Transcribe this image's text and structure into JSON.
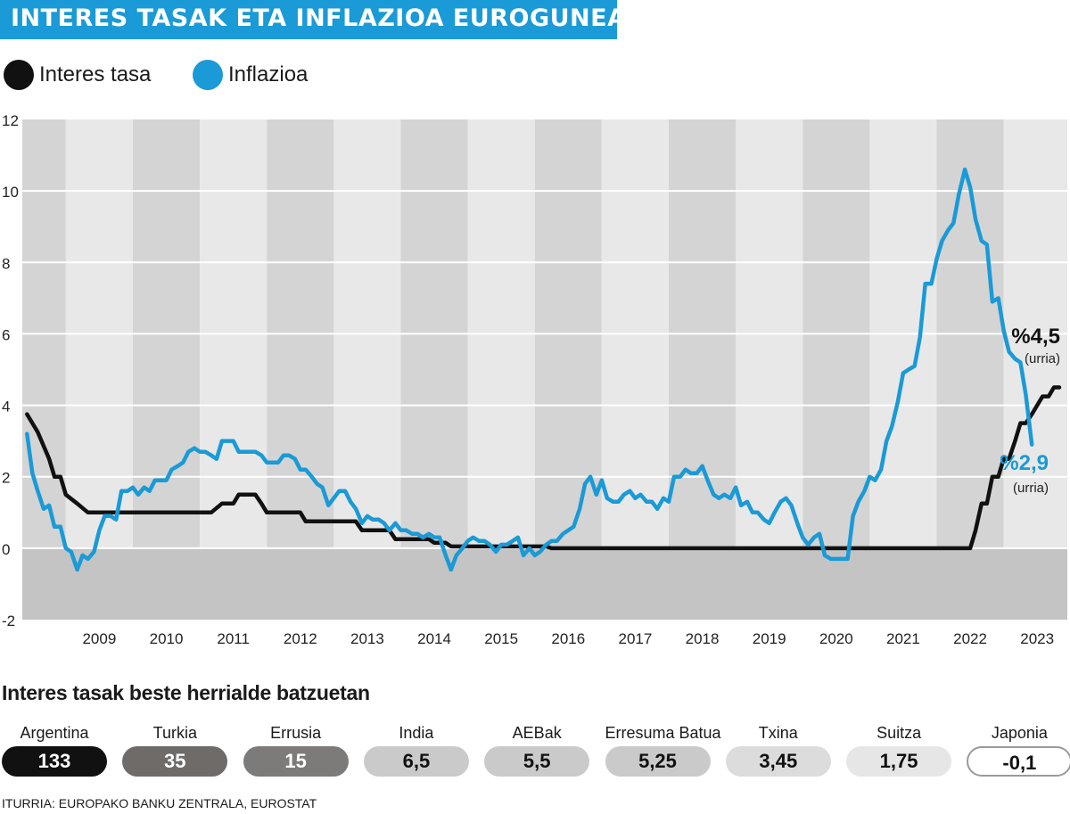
{
  "title": "INTERES TASAK ETA INFLAZIOA EUROGUNEAN",
  "legend": [
    {
      "label": "Interes tasa",
      "color": "#111111"
    },
    {
      "label": "Inflazioa",
      "color": "#1a9ad6"
    }
  ],
  "chart_data": {
    "type": "line",
    "ylim": [
      -2,
      12
    ],
    "yticks": [
      -2,
      0,
      2,
      4,
      6,
      8,
      10,
      12
    ],
    "xlim": [
      2008.35,
      2023.95
    ],
    "xtick_labels": [
      "2009",
      "2010",
      "2011",
      "2012",
      "2013",
      "2014",
      "2015",
      "2016",
      "2017",
      "2018",
      "2019",
      "2020",
      "2021",
      "2022",
      "2023"
    ],
    "grid": true,
    "legend_position": "top-left",
    "series": [
      {
        "name": "Interes tasa",
        "color": "#111111",
        "end_label": "%4,5",
        "end_note": "(urria)",
        "points": [
          [
            2008.42,
            3.75
          ],
          [
            2008.58,
            3.25
          ],
          [
            2008.75,
            2.5
          ],
          [
            2008.83,
            2.0
          ],
          [
            2008.92,
            2.0
          ],
          [
            2009.0,
            1.5
          ],
          [
            2009.17,
            1.25
          ],
          [
            2009.33,
            1.0
          ],
          [
            2011.17,
            1.0
          ],
          [
            2011.33,
            1.25
          ],
          [
            2011.5,
            1.25
          ],
          [
            2011.58,
            1.5
          ],
          [
            2011.83,
            1.5
          ],
          [
            2011.92,
            1.25
          ],
          [
            2012.0,
            1.0
          ],
          [
            2012.5,
            1.0
          ],
          [
            2012.58,
            0.75
          ],
          [
            2013.33,
            0.75
          ],
          [
            2013.42,
            0.5
          ],
          [
            2013.83,
            0.5
          ],
          [
            2013.92,
            0.25
          ],
          [
            2014.42,
            0.25
          ],
          [
            2014.5,
            0.15
          ],
          [
            2014.67,
            0.15
          ],
          [
            2014.75,
            0.05
          ],
          [
            2016.17,
            0.05
          ],
          [
            2016.25,
            0.0
          ],
          [
            2022.5,
            0.0
          ],
          [
            2022.58,
            0.5
          ],
          [
            2022.67,
            1.25
          ],
          [
            2022.75,
            1.25
          ],
          [
            2022.83,
            2.0
          ],
          [
            2022.92,
            2.0
          ],
          [
            2023.0,
            2.5
          ],
          [
            2023.08,
            2.5
          ],
          [
            2023.17,
            3.0
          ],
          [
            2023.25,
            3.5
          ],
          [
            2023.33,
            3.5
          ],
          [
            2023.42,
            3.75
          ],
          [
            2023.5,
            4.0
          ],
          [
            2023.58,
            4.25
          ],
          [
            2023.67,
            4.25
          ],
          [
            2023.75,
            4.5
          ],
          [
            2023.83,
            4.5
          ]
        ]
      },
      {
        "name": "Inflazioa",
        "color": "#1a9ad6",
        "end_label": "%2,9",
        "end_note": "(urria)",
        "points": [
          [
            2008.42,
            3.2
          ],
          [
            2008.5,
            2.1
          ],
          [
            2008.58,
            1.6
          ],
          [
            2008.67,
            1.1
          ],
          [
            2008.75,
            1.2
          ],
          [
            2008.83,
            0.6
          ],
          [
            2008.92,
            0.6
          ],
          [
            2009.0,
            0.0
          ],
          [
            2009.08,
            -0.1
          ],
          [
            2009.17,
            -0.6
          ],
          [
            2009.25,
            -0.2
          ],
          [
            2009.33,
            -0.3
          ],
          [
            2009.42,
            -0.1
          ],
          [
            2009.5,
            0.5
          ],
          [
            2009.58,
            0.9
          ],
          [
            2009.67,
            0.9
          ],
          [
            2009.75,
            0.8
          ],
          [
            2009.83,
            1.6
          ],
          [
            2009.92,
            1.6
          ],
          [
            2010.0,
            1.7
          ],
          [
            2010.08,
            1.5
          ],
          [
            2010.17,
            1.7
          ],
          [
            2010.25,
            1.6
          ],
          [
            2010.33,
            1.9
          ],
          [
            2010.42,
            1.9
          ],
          [
            2010.5,
            1.9
          ],
          [
            2010.58,
            2.2
          ],
          [
            2010.67,
            2.3
          ],
          [
            2010.75,
            2.4
          ],
          [
            2010.83,
            2.7
          ],
          [
            2010.92,
            2.8
          ],
          [
            2011.0,
            2.7
          ],
          [
            2011.08,
            2.7
          ],
          [
            2011.17,
            2.6
          ],
          [
            2011.25,
            2.5
          ],
          [
            2011.33,
            3.0
          ],
          [
            2011.5,
            3.0
          ],
          [
            2011.58,
            2.7
          ],
          [
            2011.83,
            2.7
          ],
          [
            2011.92,
            2.6
          ],
          [
            2012.0,
            2.4
          ],
          [
            2012.17,
            2.4
          ],
          [
            2012.25,
            2.6
          ],
          [
            2012.33,
            2.6
          ],
          [
            2012.42,
            2.5
          ],
          [
            2012.5,
            2.2
          ],
          [
            2012.58,
            2.2
          ],
          [
            2012.67,
            2.0
          ],
          [
            2012.75,
            1.8
          ],
          [
            2012.83,
            1.7
          ],
          [
            2012.92,
            1.2
          ],
          [
            2013.0,
            1.4
          ],
          [
            2013.08,
            1.6
          ],
          [
            2013.17,
            1.6
          ],
          [
            2013.25,
            1.3
          ],
          [
            2013.33,
            1.1
          ],
          [
            2013.42,
            0.7
          ],
          [
            2013.5,
            0.9
          ],
          [
            2013.58,
            0.8
          ],
          [
            2013.67,
            0.8
          ],
          [
            2013.75,
            0.7
          ],
          [
            2013.83,
            0.5
          ],
          [
            2013.92,
            0.7
          ],
          [
            2014.0,
            0.5
          ],
          [
            2014.08,
            0.5
          ],
          [
            2014.17,
            0.4
          ],
          [
            2014.25,
            0.4
          ],
          [
            2014.33,
            0.3
          ],
          [
            2014.42,
            0.4
          ],
          [
            2014.5,
            0.3
          ],
          [
            2014.58,
            0.3
          ],
          [
            2014.67,
            -0.2
          ],
          [
            2014.75,
            -0.6
          ],
          [
            2014.83,
            -0.2
          ],
          [
            2014.92,
            0.0
          ],
          [
            2015.0,
            0.2
          ],
          [
            2015.08,
            0.3
          ],
          [
            2015.17,
            0.2
          ],
          [
            2015.25,
            0.2
          ],
          [
            2015.33,
            0.1
          ],
          [
            2015.42,
            -0.1
          ],
          [
            2015.5,
            0.1
          ],
          [
            2015.58,
            0.1
          ],
          [
            2015.67,
            0.2
          ],
          [
            2015.75,
            0.3
          ],
          [
            2015.83,
            -0.2
          ],
          [
            2015.92,
            0.0
          ],
          [
            2016.0,
            -0.2
          ],
          [
            2016.08,
            -0.1
          ],
          [
            2016.17,
            0.1
          ],
          [
            2016.25,
            0.2
          ],
          [
            2016.33,
            0.2
          ],
          [
            2016.42,
            0.4
          ],
          [
            2016.5,
            0.5
          ],
          [
            2016.58,
            0.6
          ],
          [
            2016.67,
            1.1
          ],
          [
            2016.75,
            1.8
          ],
          [
            2016.83,
            2.0
          ],
          [
            2016.92,
            1.5
          ],
          [
            2017.0,
            1.9
          ],
          [
            2017.08,
            1.4
          ],
          [
            2017.17,
            1.3
          ],
          [
            2017.25,
            1.3
          ],
          [
            2017.33,
            1.5
          ],
          [
            2017.42,
            1.6
          ],
          [
            2017.5,
            1.4
          ],
          [
            2017.58,
            1.5
          ],
          [
            2017.67,
            1.3
          ],
          [
            2017.75,
            1.3
          ],
          [
            2017.83,
            1.1
          ],
          [
            2017.92,
            1.4
          ],
          [
            2018.0,
            1.3
          ],
          [
            2018.08,
            2.0
          ],
          [
            2018.17,
            2.0
          ],
          [
            2018.25,
            2.2
          ],
          [
            2018.33,
            2.1
          ],
          [
            2018.42,
            2.1
          ],
          [
            2018.5,
            2.3
          ],
          [
            2018.58,
            1.9
          ],
          [
            2018.67,
            1.5
          ],
          [
            2018.75,
            1.4
          ],
          [
            2018.83,
            1.5
          ],
          [
            2018.92,
            1.4
          ],
          [
            2019.0,
            1.7
          ],
          [
            2019.08,
            1.2
          ],
          [
            2019.17,
            1.3
          ],
          [
            2019.25,
            1.0
          ],
          [
            2019.33,
            1.0
          ],
          [
            2019.42,
            0.8
          ],
          [
            2019.5,
            0.7
          ],
          [
            2019.58,
            1.0
          ],
          [
            2019.67,
            1.3
          ],
          [
            2019.75,
            1.4
          ],
          [
            2019.83,
            1.2
          ],
          [
            2019.92,
            0.7
          ],
          [
            2020.0,
            0.3
          ],
          [
            2020.08,
            0.1
          ],
          [
            2020.17,
            0.3
          ],
          [
            2020.25,
            0.4
          ],
          [
            2020.33,
            -0.2
          ],
          [
            2020.42,
            -0.3
          ],
          [
            2020.5,
            -0.3
          ],
          [
            2020.58,
            -0.3
          ],
          [
            2020.67,
            -0.3
          ],
          [
            2020.75,
            0.9
          ],
          [
            2020.83,
            1.3
          ],
          [
            2020.92,
            1.6
          ],
          [
            2021.0,
            2.0
          ],
          [
            2021.08,
            1.9
          ],
          [
            2021.17,
            2.2
          ],
          [
            2021.25,
            3.0
          ],
          [
            2021.33,
            3.4
          ],
          [
            2021.42,
            4.1
          ],
          [
            2021.5,
            4.9
          ],
          [
            2021.58,
            5.0
          ],
          [
            2021.67,
            5.1
          ],
          [
            2021.75,
            5.9
          ],
          [
            2021.83,
            7.4
          ],
          [
            2021.92,
            7.4
          ],
          [
            2022.0,
            8.1
          ],
          [
            2022.08,
            8.6
          ],
          [
            2022.17,
            8.9
          ],
          [
            2022.25,
            9.1
          ],
          [
            2022.33,
            9.9
          ],
          [
            2022.42,
            10.6
          ],
          [
            2022.5,
            10.1
          ],
          [
            2022.58,
            9.2
          ],
          [
            2022.67,
            8.6
          ],
          [
            2022.75,
            8.5
          ],
          [
            2022.83,
            6.9
          ],
          [
            2022.92,
            7.0
          ],
          [
            2023.0,
            6.1
          ],
          [
            2023.08,
            5.5
          ],
          [
            2023.17,
            5.3
          ],
          [
            2023.25,
            5.2
          ],
          [
            2023.33,
            4.3
          ],
          [
            2023.42,
            2.9
          ]
        ]
      }
    ],
    "background": {
      "band_even": "#d4d4d4",
      "band_odd": "#e8e8e8",
      "negative_zone": "#c4c4c4"
    }
  },
  "section_title": "Interes tasak beste herrialde batzuetan",
  "countries": [
    {
      "name": "Argentina",
      "value": "133",
      "bg": "#111111",
      "fg": "#ffffff"
    },
    {
      "name": "Turkia",
      "value": "35",
      "bg": "#6e6b69",
      "fg": "#ffffff"
    },
    {
      "name": "Errusia",
      "value": "15",
      "bg": "#7d7b79",
      "fg": "#ffffff"
    },
    {
      "name": "India",
      "value": "6,5",
      "bg": "#cacaca",
      "fg": "#111111"
    },
    {
      "name": "AEBak",
      "value": "5,5",
      "bg": "#cacaca",
      "fg": "#111111"
    },
    {
      "name": "Erresuma Batua",
      "value": "5,25",
      "bg": "#cacaca",
      "fg": "#111111"
    },
    {
      "name": "Txina",
      "value": "3,45",
      "bg": "#dcdcdc",
      "fg": "#111111"
    },
    {
      "name": "Suitza",
      "value": "1,75",
      "bg": "#e6e6e6",
      "fg": "#111111"
    },
    {
      "name": "Japonia",
      "value": "-0,1",
      "bg": "#ffffff",
      "fg": "#111111"
    }
  ],
  "source": "ITURRIA: EUROPAKO BANKU ZENTRALA, EUROSTAT"
}
